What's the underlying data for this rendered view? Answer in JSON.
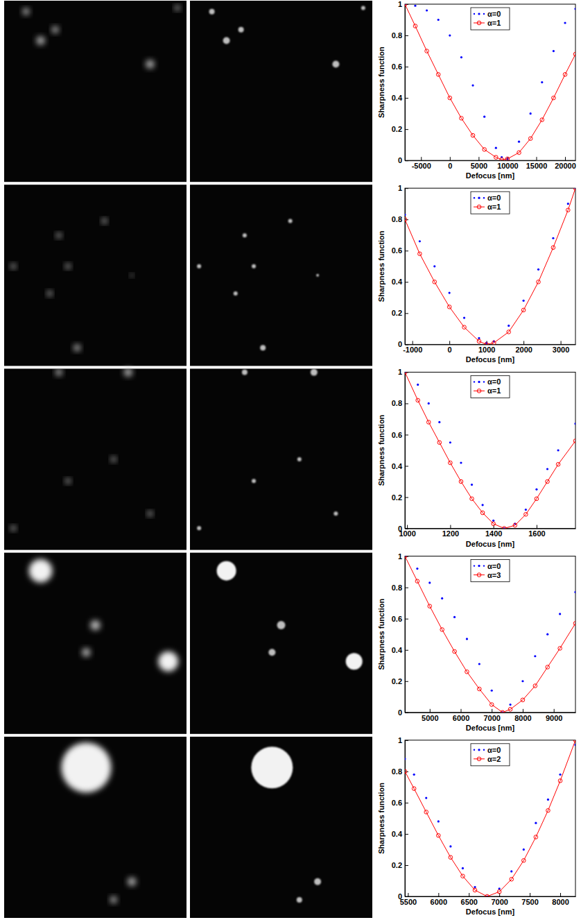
{
  "chart_data": [
    {
      "type": "line",
      "x_label": "Defocus [nm]",
      "y_label": "Sharpness function",
      "x": [
        -7800,
        -6000,
        -4000,
        -2000,
        0,
        2000,
        4000,
        6000,
        8000,
        9000,
        10000,
        12000,
        14000,
        16000,
        18000,
        20000,
        21800
      ],
      "series": [
        {
          "name": "α=0",
          "color": "#0000ff",
          "marker": "point",
          "line_style": "none",
          "values": [
            1.0,
            0.99,
            0.96,
            0.9,
            0.8,
            0.66,
            0.48,
            0.28,
            0.08,
            0.02,
            0.01,
            0.12,
            0.3,
            0.5,
            0.7,
            0.88,
            0.97
          ]
        },
        {
          "name": "α=1",
          "color": "#ff0000",
          "marker": "circle",
          "line_style": "solid",
          "values": [
            1.0,
            0.86,
            0.7,
            0.55,
            0.4,
            0.27,
            0.16,
            0.07,
            0.02,
            0.005,
            0.01,
            0.05,
            0.14,
            0.26,
            0.4,
            0.55,
            0.68
          ]
        }
      ],
      "xlim": [
        -7800,
        21800
      ],
      "xticks": [
        -5000,
        0,
        5000,
        10000,
        15000,
        20000
      ],
      "ylim": [
        0,
        1
      ],
      "yticks": [
        0,
        0.2,
        0.4,
        0.6,
        0.8,
        1
      ],
      "grid": false,
      "legend": "top"
    },
    {
      "type": "line",
      "x_label": "Defocus [nm]",
      "y_label": "Sharpness function",
      "x": [
        -1200,
        -800,
        -400,
        0,
        400,
        800,
        1000,
        1200,
        1600,
        2000,
        2400,
        2800,
        3200,
        3400
      ],
      "series": [
        {
          "name": "α=0",
          "color": "#0000ff",
          "marker": "point",
          "line_style": "none",
          "values": [
            0.83,
            0.66,
            0.5,
            0.33,
            0.17,
            0.04,
            0.01,
            0.02,
            0.12,
            0.28,
            0.48,
            0.68,
            0.9,
            1.0
          ]
        },
        {
          "name": "α=1",
          "color": "#ff0000",
          "marker": "circle",
          "line_style": "solid",
          "values": [
            0.8,
            0.58,
            0.4,
            0.24,
            0.11,
            0.02,
            0.0,
            0.01,
            0.08,
            0.22,
            0.4,
            0.62,
            0.86,
            1.0
          ]
        }
      ],
      "xlim": [
        -1200,
        3400
      ],
      "xticks": [
        -1000,
        0,
        1000,
        2000,
        3000
      ],
      "ylim": [
        0,
        1
      ],
      "yticks": [
        0,
        0.2,
        0.4,
        0.6,
        0.8,
        1
      ],
      "grid": false,
      "legend": "top"
    },
    {
      "type": "line",
      "x_label": "Defocus [nm]",
      "y_label": "Sharpness function",
      "x": [
        990,
        1050,
        1100,
        1150,
        1200,
        1250,
        1300,
        1350,
        1400,
        1450,
        1500,
        1550,
        1600,
        1650,
        1700,
        1780
      ],
      "series": [
        {
          "name": "α=0",
          "color": "#0000ff",
          "marker": "point",
          "line_style": "none",
          "values": [
            1.0,
            0.92,
            0.8,
            0.68,
            0.55,
            0.42,
            0.28,
            0.15,
            0.05,
            0.0,
            0.03,
            0.12,
            0.25,
            0.38,
            0.5,
            0.67
          ]
        },
        {
          "name": "α=1",
          "color": "#ff0000",
          "marker": "circle",
          "line_style": "solid",
          "values": [
            1.0,
            0.82,
            0.68,
            0.55,
            0.42,
            0.3,
            0.19,
            0.1,
            0.03,
            0.0,
            0.02,
            0.09,
            0.19,
            0.3,
            0.41,
            0.56
          ]
        }
      ],
      "xlim": [
        990,
        1780
      ],
      "xticks": [
        1000,
        1200,
        1400,
        1600
      ],
      "ylim": [
        0,
        1
      ],
      "yticks": [
        0,
        0.2,
        0.4,
        0.6,
        0.8,
        1
      ],
      "grid": false,
      "legend": "top"
    },
    {
      "type": "line",
      "x_label": "Defocus [nm]",
      "y_label": "Sharpness function",
      "x": [
        4200,
        4600,
        5000,
        5400,
        5800,
        6200,
        6600,
        7000,
        7350,
        7600,
        8000,
        8400,
        8800,
        9200,
        9700
      ],
      "series": [
        {
          "name": "α=0",
          "color": "#0000ff",
          "marker": "point",
          "line_style": "none",
          "values": [
            1.0,
            0.92,
            0.83,
            0.73,
            0.61,
            0.47,
            0.31,
            0.14,
            0.0,
            0.05,
            0.2,
            0.36,
            0.5,
            0.63,
            0.77
          ]
        },
        {
          "name": "α=3",
          "color": "#ff0000",
          "marker": "circle",
          "line_style": "solid",
          "values": [
            1.0,
            0.84,
            0.68,
            0.53,
            0.39,
            0.26,
            0.15,
            0.05,
            0.0,
            0.02,
            0.08,
            0.17,
            0.29,
            0.41,
            0.57
          ]
        }
      ],
      "xlim": [
        4200,
        9700
      ],
      "xticks": [
        5000,
        6000,
        7000,
        8000,
        9000
      ],
      "ylim": [
        0,
        1
      ],
      "yticks": [
        0,
        0.2,
        0.4,
        0.6,
        0.8,
        1
      ],
      "grid": false,
      "legend": "top"
    },
    {
      "type": "line",
      "x_label": "Defocus [nm]",
      "y_label": "Sharpness function",
      "x": [
        5450,
        5600,
        5800,
        6000,
        6200,
        6400,
        6600,
        6800,
        7000,
        7200,
        7400,
        7600,
        7800,
        8000,
        8250
      ],
      "series": [
        {
          "name": "α=0",
          "color": "#0000ff",
          "marker": "point",
          "line_style": "none",
          "values": [
            0.88,
            0.78,
            0.63,
            0.48,
            0.32,
            0.18,
            0.06,
            0.0,
            0.05,
            0.16,
            0.3,
            0.47,
            0.62,
            0.78,
            0.97
          ]
        },
        {
          "name": "α=2",
          "color": "#ff0000",
          "marker": "circle",
          "line_style": "solid",
          "values": [
            0.8,
            0.69,
            0.54,
            0.39,
            0.25,
            0.13,
            0.04,
            0.0,
            0.03,
            0.11,
            0.23,
            0.38,
            0.55,
            0.74,
            1.0
          ]
        }
      ],
      "xlim": [
        5450,
        8250
      ],
      "xticks": [
        5500,
        6000,
        6500,
        7000,
        7500,
        8000
      ],
      "ylim": [
        0,
        1
      ],
      "yticks": [
        0,
        0.2,
        0.4,
        0.6,
        0.8,
        1
      ],
      "grid": false,
      "legend": "top"
    }
  ]
}
